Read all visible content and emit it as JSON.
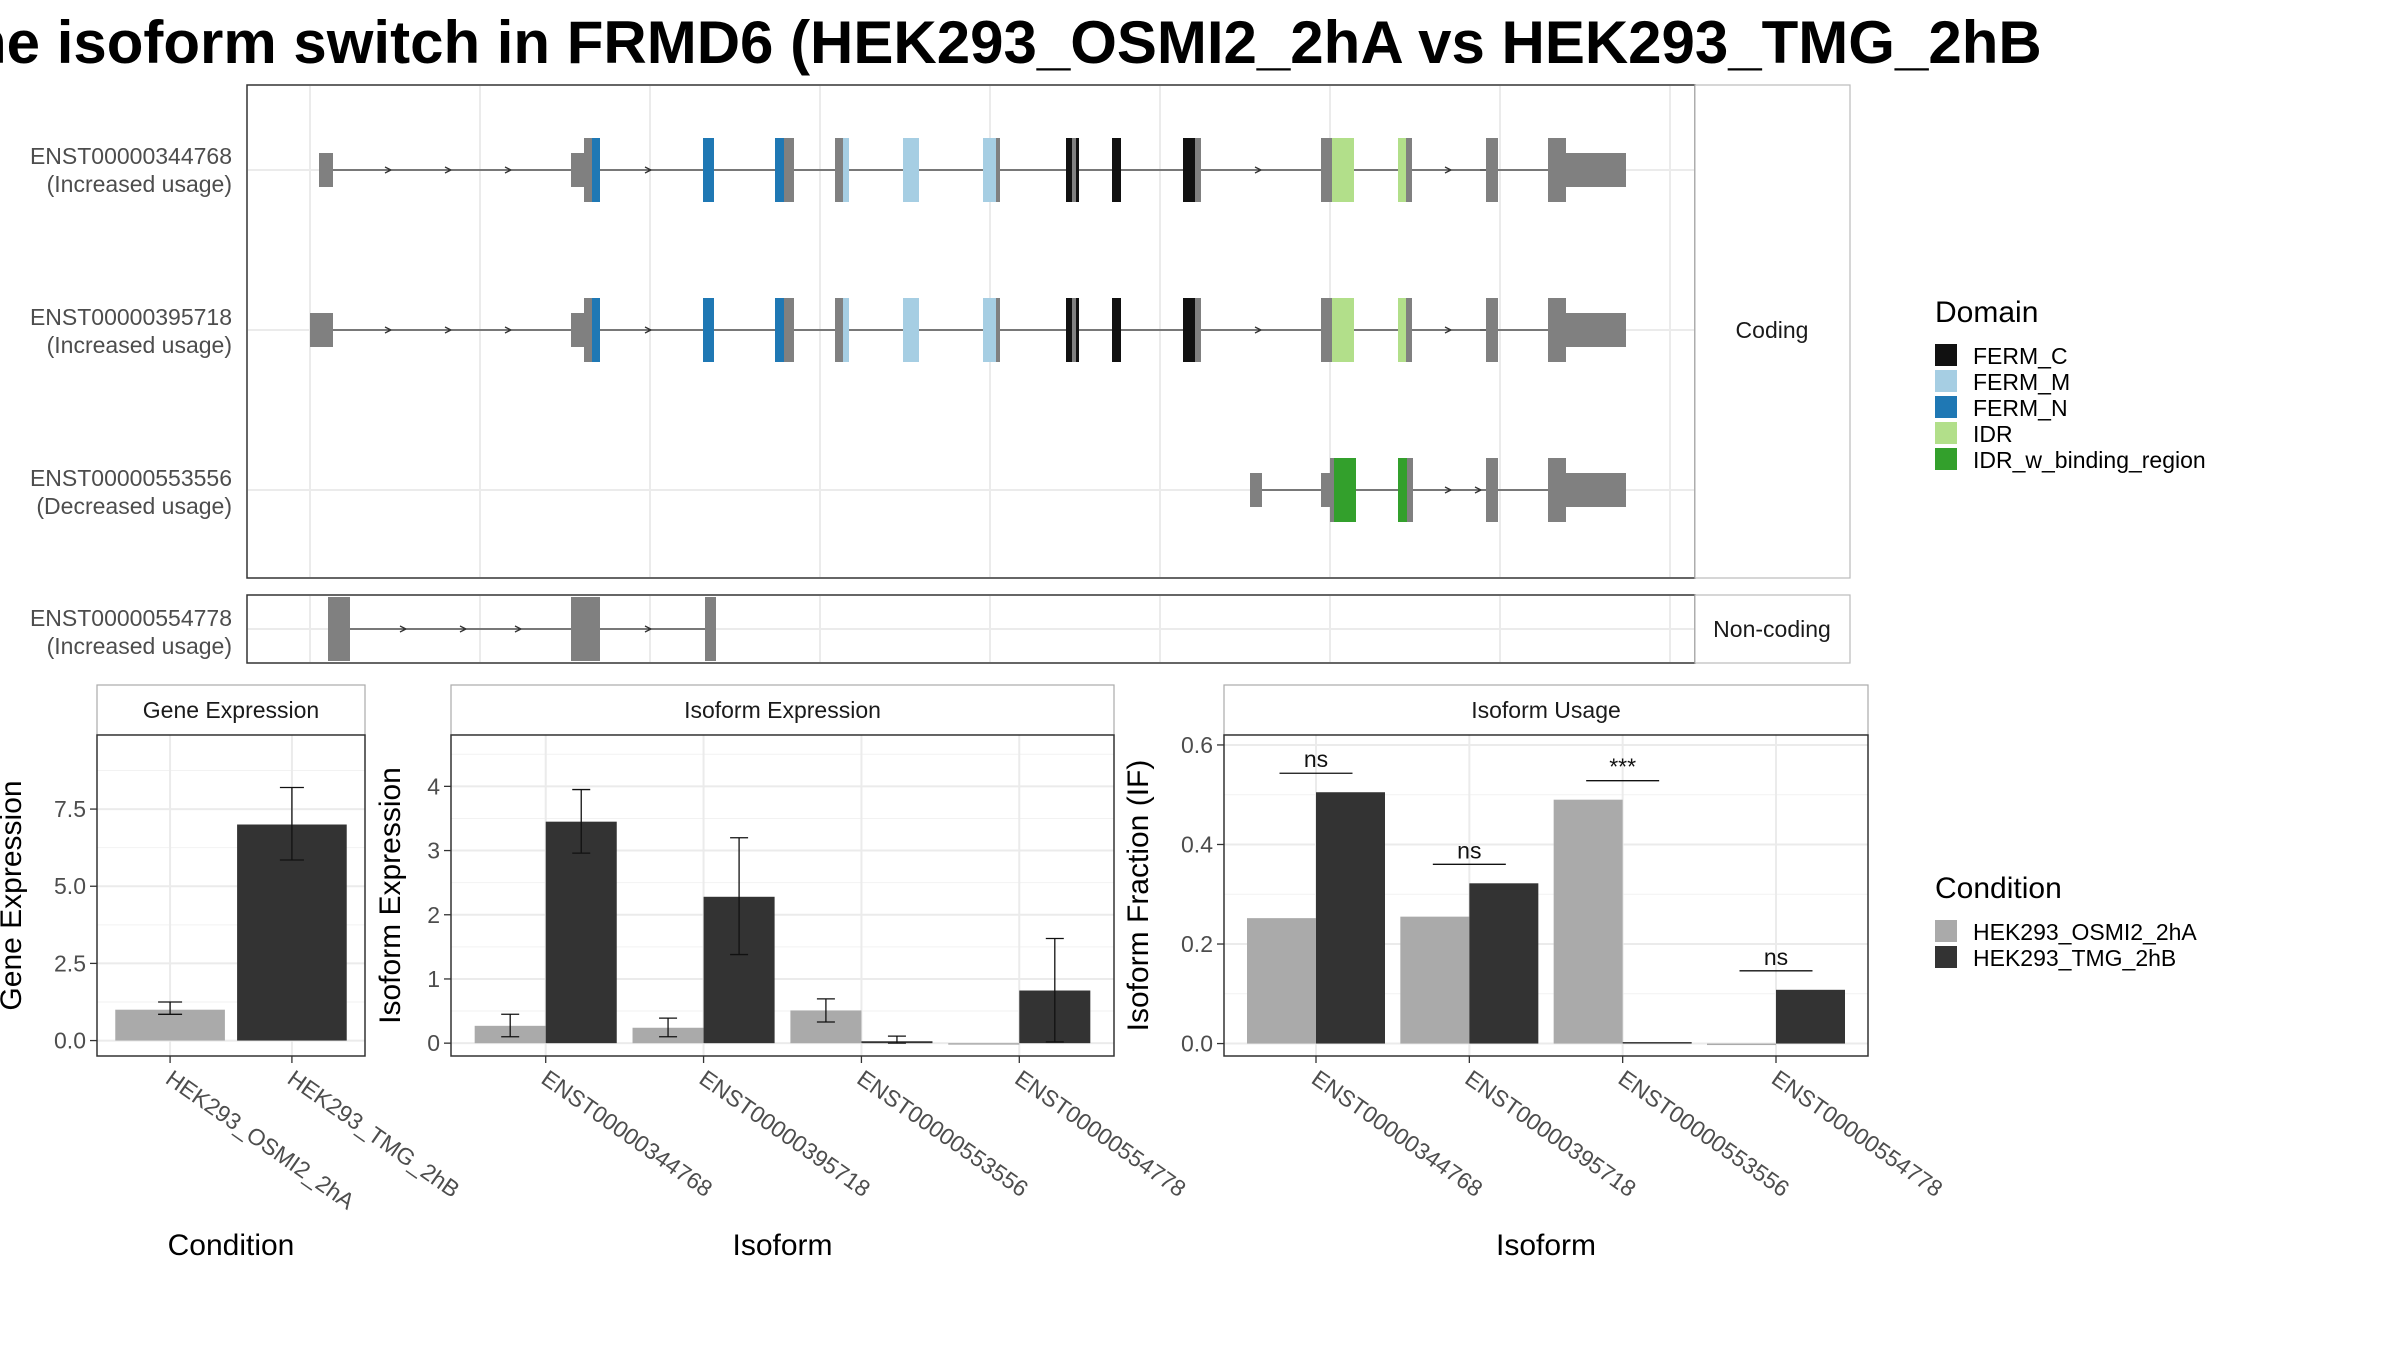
{
  "title": "he isoform switch in FRMD6 (HEK293_OSMI2_2hA vs HEK293_TMG_2hB",
  "colors": {
    "exon": "#808080",
    "condition_a": "#aaaaaa",
    "condition_b": "#333333",
    "FERM_C": "#111111",
    "FERM_M": "#a6cee3",
    "FERM_N": "#1f78b4",
    "IDR": "#b2df8a",
    "IDR_w_binding_region": "#33a02c"
  },
  "transcripts": {
    "coding_label": "Coding",
    "noncoding_label": "Non-coding",
    "coding": [
      {
        "id": "ENST00000344768",
        "note": "(Increased usage)"
      },
      {
        "id": "ENST00000395718",
        "note": "(Increased usage)"
      },
      {
        "id": "ENST00000553556",
        "note": "(Decreased usage)"
      }
    ],
    "noncoding": [
      {
        "id": "ENST00000554778",
        "note": "(Increased usage)"
      }
    ]
  },
  "domain_legend": {
    "title": "Domain",
    "items": [
      {
        "name": "FERM_C",
        "color": "#111111"
      },
      {
        "name": "FERM_M",
        "color": "#a6cee3"
      },
      {
        "name": "FERM_N",
        "color": "#1f78b4"
      },
      {
        "name": "IDR",
        "color": "#b2df8a"
      },
      {
        "name": "IDR_w_binding_region",
        "color": "#33a02c"
      }
    ]
  },
  "condition_legend": {
    "title": "Condition",
    "items": [
      {
        "name": "HEK293_OSMI2_2hA",
        "color": "#aaaaaa"
      },
      {
        "name": "HEK293_TMG_2hB",
        "color": "#333333"
      }
    ]
  },
  "chart_data": [
    {
      "type": "bar",
      "title": "Gene Expression",
      "xlabel": "Condition",
      "ylabel": "Gene Expression",
      "categories": [
        "HEK293_OSMI2_2hA",
        "HEK293_TMG_2hB"
      ],
      "values": [
        1.0,
        7.0
      ],
      "error_low": [
        0.85,
        5.85
      ],
      "error_high": [
        1.25,
        8.2
      ],
      "ylim": [
        -0.5,
        9.9
      ],
      "yticks": [
        0.0,
        2.5,
        5.0,
        7.5
      ],
      "ytick_labels": [
        "0.0",
        "2.5",
        "5.0",
        "7.5"
      ],
      "grid": true
    },
    {
      "type": "bar",
      "title": "Isoform Expression",
      "xlabel": "Isoform",
      "ylabel": "Isoform Expression",
      "categories": [
        "ENST00000344768",
        "ENST00000395718",
        "ENST00000553556",
        "ENST00000554778"
      ],
      "series": [
        {
          "name": "HEK293_OSMI2_2hA",
          "values": [
            0.27,
            0.24,
            0.51,
            0.0
          ],
          "error_low": [
            0.1,
            0.1,
            0.33,
            0.0
          ],
          "error_high": [
            0.45,
            0.39,
            0.69,
            0.0
          ]
        },
        {
          "name": "HEK293_TMG_2hB",
          "values": [
            3.45,
            2.28,
            0.03,
            0.82
          ],
          "error_low": [
            2.96,
            1.38,
            0.0,
            0.02
          ],
          "error_high": [
            3.95,
            3.2,
            0.11,
            1.63
          ]
        }
      ],
      "ylim": [
        -0.2,
        4.8
      ],
      "yticks": [
        0,
        1,
        2,
        3,
        4
      ],
      "ytick_labels": [
        "0",
        "1",
        "2",
        "3",
        "4"
      ],
      "grid": true
    },
    {
      "type": "bar",
      "title": "Isoform Usage",
      "xlabel": "Isoform",
      "ylabel": "Isoform Fraction (IF)",
      "categories": [
        "ENST00000344768",
        "ENST00000395718",
        "ENST00000553556",
        "ENST00000554778"
      ],
      "series": [
        {
          "name": "HEK293_OSMI2_2hA",
          "values": [
            0.252,
            0.255,
            0.49,
            0.0
          ]
        },
        {
          "name": "HEK293_TMG_2hB",
          "values": [
            0.505,
            0.322,
            0.003,
            0.108
          ]
        }
      ],
      "significance": [
        "ns",
        "ns",
        "***",
        "ns"
      ],
      "ylim": [
        -0.025,
        0.62
      ],
      "yticks": [
        0.0,
        0.2,
        0.4,
        0.6
      ],
      "ytick_labels": [
        "0.0",
        "0.2",
        "0.4",
        "0.6"
      ],
      "grid": true
    }
  ]
}
